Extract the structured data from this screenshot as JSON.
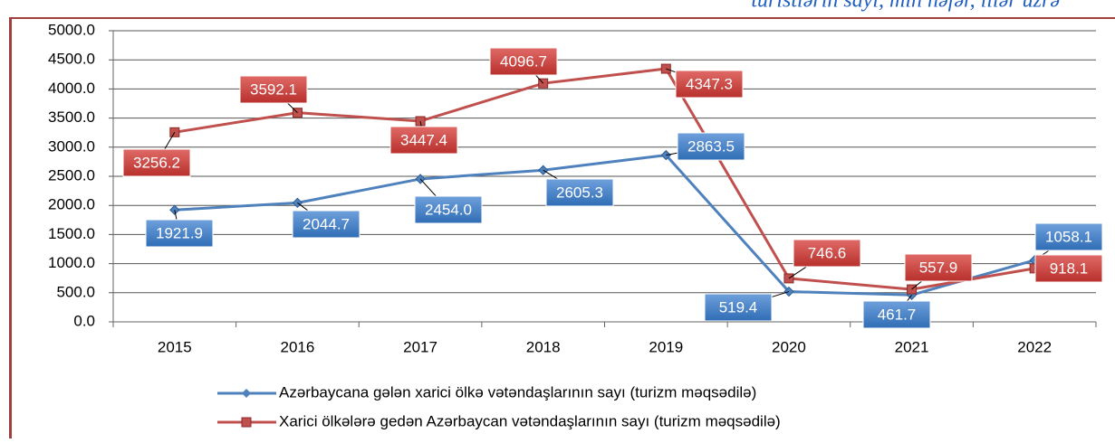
{
  "chart_data": {
    "type": "line",
    "subtitle": "turistlərin sayı, min nəfər, illər üzrə",
    "categories": [
      "2015",
      "2016",
      "2017",
      "2018",
      "2019",
      "2020",
      "2021",
      "2022"
    ],
    "series": [
      {
        "name": "Azərbaycana gələn xarici ölkə vətəndaşlarının sayı (turizm məqsədilə)",
        "color": "#4f81bd",
        "marker": "diamond",
        "values": [
          1921.9,
          2044.7,
          2454.0,
          2605.3,
          2863.5,
          519.4,
          461.7,
          1058.1
        ],
        "value_labels": [
          "1921.9",
          "2044.7",
          "2454.0",
          "2605.3",
          "2863.5",
          "519.4",
          "461.7",
          "1058.1"
        ]
      },
      {
        "name": "Xarici ölkələrə gedən Azərbaycan vətəndaşlarının sayı (turizm məqsədilə)",
        "color": "#c0504d",
        "marker": "square",
        "values": [
          3256.2,
          3592.1,
          3447.4,
          4096.7,
          4347.3,
          746.6,
          557.9,
          918.1
        ],
        "value_labels": [
          "3256.2",
          "3592.1",
          "3447.4",
          "4096.7",
          "4347.3",
          "746.6",
          "557.9",
          "918.1"
        ]
      }
    ],
    "ylim": [
      0,
      5000
    ],
    "yticks": [
      {
        "value": 0,
        "label": "0.0"
      },
      {
        "value": 500,
        "label": "500.0"
      },
      {
        "value": 1000,
        "label": "1000.0"
      },
      {
        "value": 1500,
        "label": "1500.0"
      },
      {
        "value": 2000,
        "label": "2000.0"
      },
      {
        "value": 2500,
        "label": "2500.0"
      },
      {
        "value": 3000,
        "label": "3000.0"
      },
      {
        "value": 3500,
        "label": "3500.0"
      },
      {
        "value": 4000,
        "label": "4000.0"
      },
      {
        "value": 4500,
        "label": "4500.0"
      },
      {
        "value": 5000,
        "label": "5000.0"
      }
    ],
    "grid": true,
    "legend": "bottom"
  }
}
